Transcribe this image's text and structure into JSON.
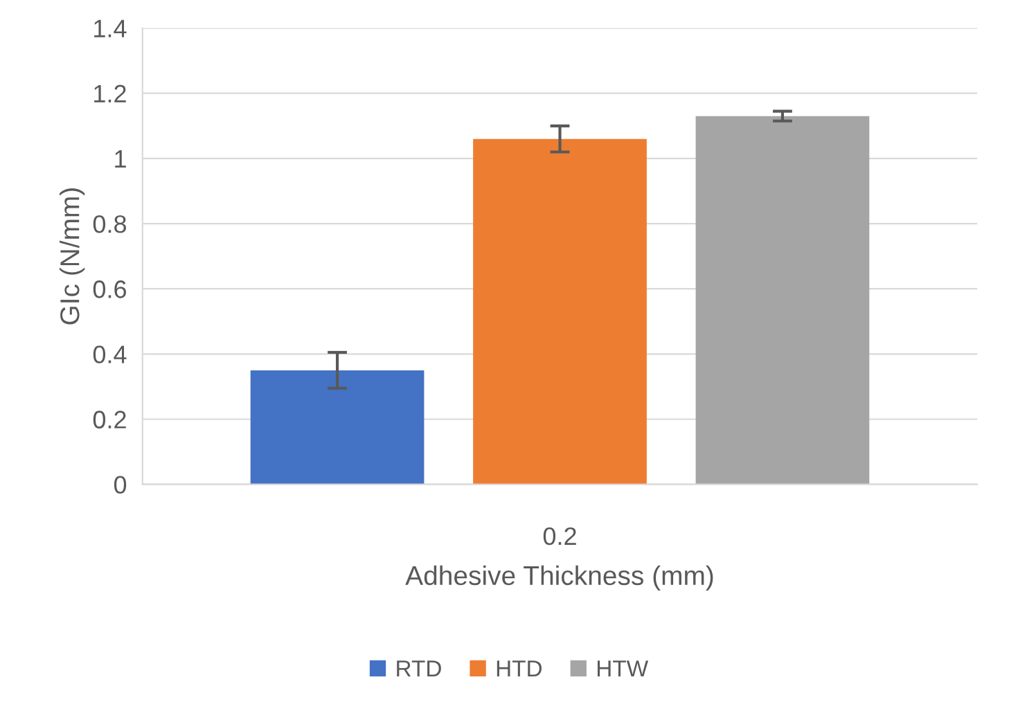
{
  "chart_data": {
    "type": "bar",
    "xlabel": "Adhesive Thickness (mm)",
    "ylabel": "GIc (N/mm)",
    "categories": [
      "0.2"
    ],
    "series": [
      {
        "name": "RTD",
        "color": "#4472c4",
        "values": [
          0.35
        ],
        "errors": [
          0.055
        ]
      },
      {
        "name": "HTD",
        "color": "#ed7d31",
        "values": [
          1.06
        ],
        "errors": [
          0.04
        ]
      },
      {
        "name": "HTW",
        "color": "#a5a5a5",
        "values": [
          1.13
        ],
        "errors": [
          0.015
        ]
      }
    ],
    "ylim": [
      0,
      1.4
    ],
    "yticks": [
      0,
      0.2,
      0.4,
      0.6,
      0.8,
      1,
      1.2,
      1.4
    ],
    "grid": "y",
    "legend": "bottom"
  }
}
